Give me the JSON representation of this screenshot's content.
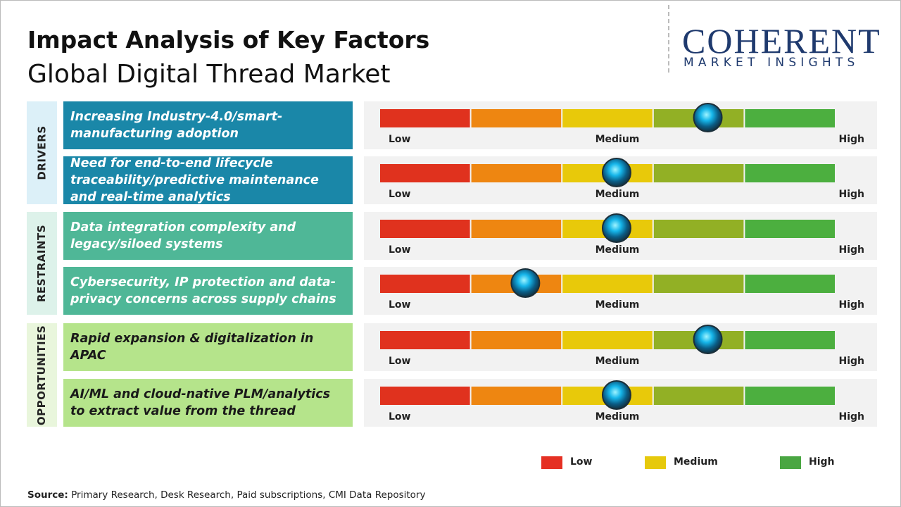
{
  "header": {
    "title": "Impact Analysis of Key Factors",
    "subtitle": "Global Digital Thread Market"
  },
  "logo": {
    "name": "COHERENT",
    "tagline": "MARKET INSIGHTS"
  },
  "scale_labels": [
    "Low",
    "Medium",
    "High"
  ],
  "groups": [
    {
      "label": "DRIVERS",
      "factors": [
        {
          "text": "Increasing Industry-4.0/smart-manufacturing adoption",
          "impact": 3.6
        },
        {
          "text": "Need for end-to-end lifecycle traceability/predictive maintenance and real-time analytics",
          "impact": 2.6
        }
      ]
    },
    {
      "label": "RESTRAINTS",
      "factors": [
        {
          "text": "Data integration complexity and legacy/siloed systems",
          "impact": 2.6
        },
        {
          "text": "Cybersecurity, IP protection and data-privacy concerns across supply chains",
          "impact": 1.6
        }
      ]
    },
    {
      "label": "OPPORTUNITIES",
      "factors": [
        {
          "text": "Rapid expansion & digitalization in APAC",
          "impact": 3.6
        },
        {
          "text": "AI/ML and cloud-native PLM/analytics to extract value from the thread",
          "impact": 2.6
        }
      ]
    }
  ],
  "legend": [
    {
      "label": "Low",
      "color": "#e53023"
    },
    {
      "label": "Medium",
      "color": "#e6c90c"
    },
    {
      "label": "High",
      "color": "#4aa642"
    }
  ],
  "source": {
    "label": "Source:",
    "text": "Primary Research, Desk Research, Paid subscriptions, CMI Data Repository"
  }
}
